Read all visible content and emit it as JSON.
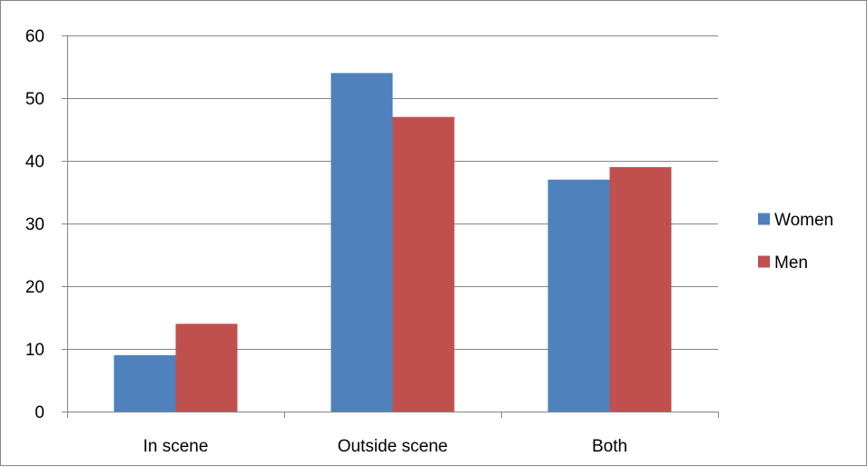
{
  "chart_data": {
    "type": "bar",
    "title": "",
    "xlabel": "",
    "ylabel": "",
    "categories": [
      "In scene",
      "Outside scene",
      "Both"
    ],
    "series": [
      {
        "name": "Women",
        "values": [
          9,
          54,
          37
        ],
        "color": "#4F81BD"
      },
      {
        "name": "Men",
        "values": [
          14,
          47,
          39
        ],
        "color": "#C0504D"
      }
    ],
    "ylim": [
      0,
      60
    ],
    "yticks": [
      0,
      10,
      20,
      30,
      40,
      50,
      60
    ],
    "grid": true,
    "gridline_color": "#868686",
    "legend_position": "right"
  }
}
